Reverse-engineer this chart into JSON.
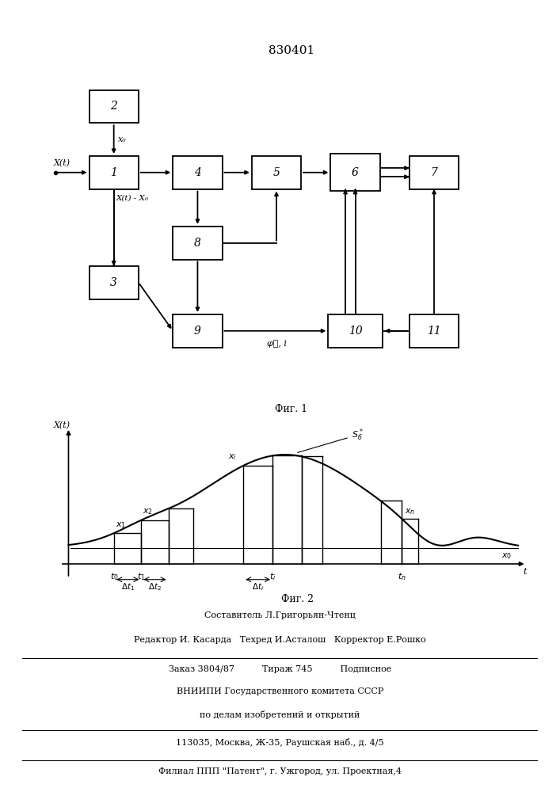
{
  "title": "830401",
  "bg_color": "#ffffff",
  "block_color": "#ffffff",
  "block_edge_color": "#000000",
  "footer_lines": [
    "Составитель Л.Григорьян-Чтенц",
    "Редактор И. Касарда   Техред И.Асталош   Корректор Е.Рошко",
    "Заказ 3804/87          Тираж 745          Подписное",
    "ВНИИПИ Государственного комитета СССР",
    "по делам изобретений и открытий",
    "113035, Москва, Ж-35, Раушская наб., д. 4/5",
    "Филиал ППП \"Патент\", г. Ужгород, ул. Проектная,4"
  ]
}
